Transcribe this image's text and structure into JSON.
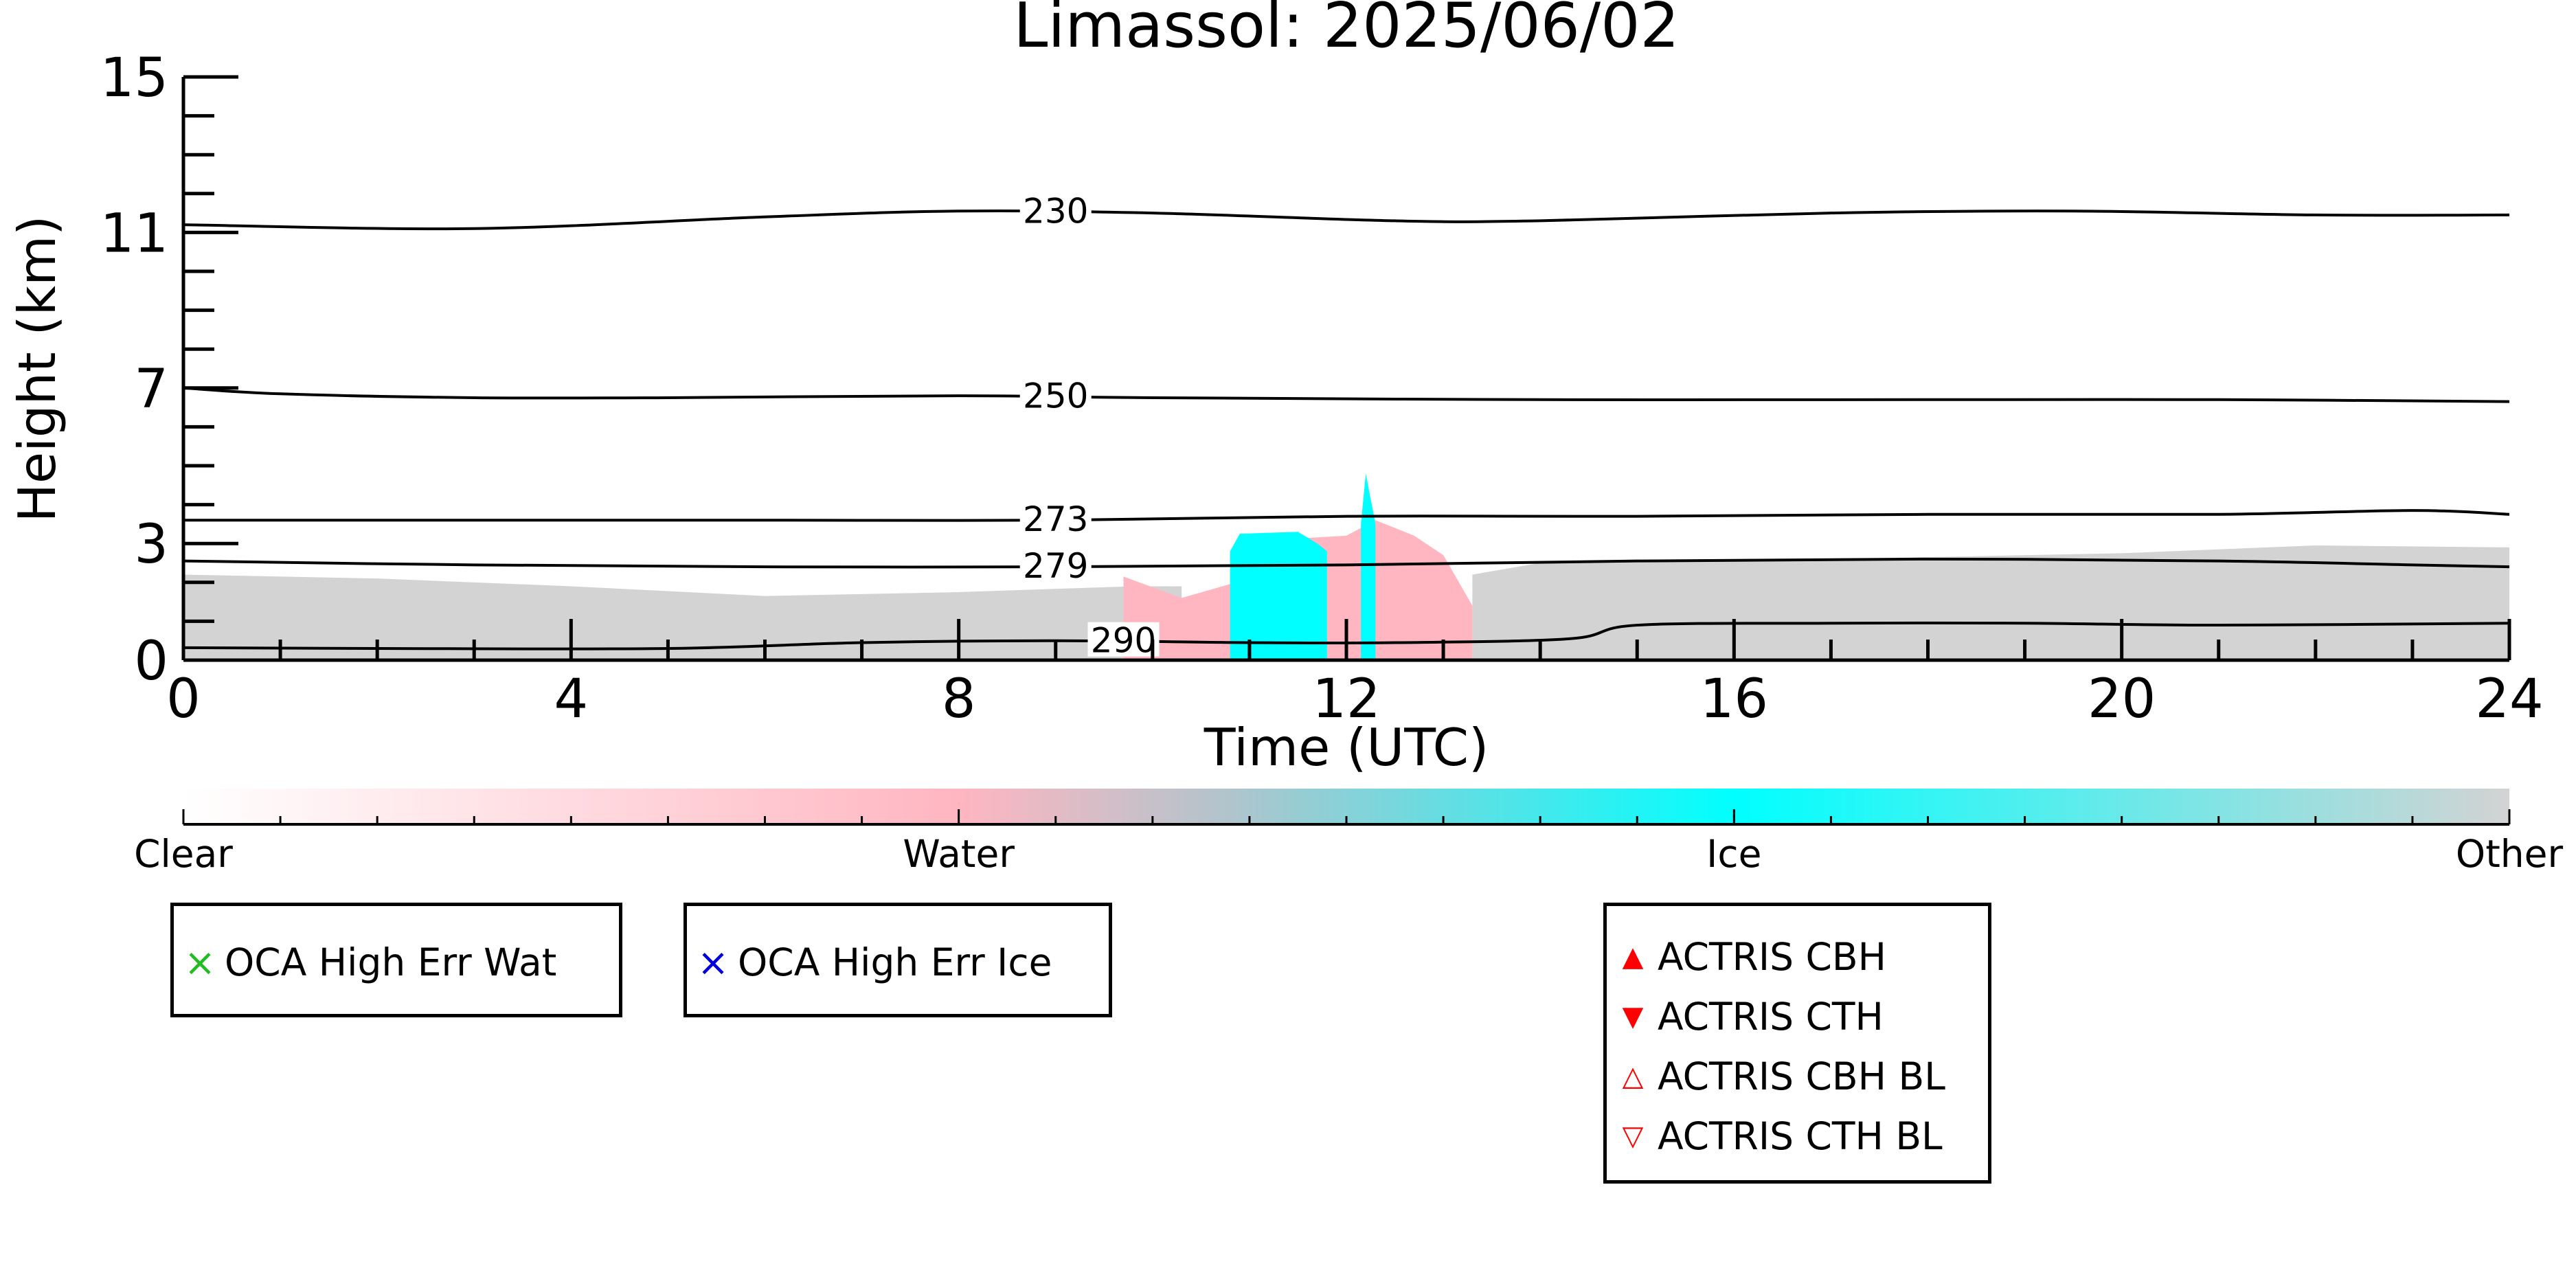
{
  "chart_data": {
    "type": "area",
    "title": "Limassol: 2025/06/02",
    "xlabel": "Time (UTC)",
    "ylabel": "Height (km)",
    "xlim": [
      0,
      24
    ],
    "ylim": [
      0,
      15
    ],
    "x_ticks": [
      0,
      4,
      8,
      12,
      16,
      20,
      24
    ],
    "y_ticks": [
      0,
      3,
      7,
      11,
      15
    ],
    "colorbar": {
      "labels": [
        "Clear",
        "Water",
        "Ice",
        "Other"
      ],
      "colors": [
        "#ffffff",
        "#ffb6c1",
        "#00ffff",
        "#d3d3d3"
      ]
    },
    "temperature_contours": [
      {
        "label": "230",
        "points": [
          [
            0,
            11.2
          ],
          [
            3,
            11.1
          ],
          [
            6,
            11.4
          ],
          [
            8,
            11.55
          ],
          [
            10,
            11.5
          ],
          [
            12.5,
            11.3
          ],
          [
            14,
            11.3
          ],
          [
            17,
            11.5
          ],
          [
            19.5,
            11.55
          ],
          [
            22,
            11.45
          ],
          [
            24,
            11.45
          ]
        ]
      },
      {
        "label": "250",
        "points": [
          [
            0,
            7.0
          ],
          [
            1,
            6.85
          ],
          [
            3,
            6.75
          ],
          [
            5,
            6.75
          ],
          [
            8,
            6.8
          ],
          [
            10,
            6.75
          ],
          [
            14,
            6.7
          ],
          [
            18,
            6.7
          ],
          [
            21,
            6.7
          ],
          [
            24,
            6.65
          ]
        ]
      },
      {
        "label": "273",
        "points": [
          [
            0,
            3.6
          ],
          [
            3,
            3.6
          ],
          [
            6,
            3.6
          ],
          [
            9,
            3.6
          ],
          [
            12,
            3.7
          ],
          [
            15,
            3.7
          ],
          [
            18,
            3.75
          ],
          [
            21,
            3.75
          ],
          [
            23,
            3.85
          ],
          [
            24,
            3.75
          ]
        ]
      },
      {
        "label": "279",
        "points": [
          [
            0,
            2.55
          ],
          [
            3,
            2.45
          ],
          [
            6,
            2.4
          ],
          [
            9,
            2.4
          ],
          [
            12,
            2.45
          ],
          [
            15,
            2.55
          ],
          [
            18,
            2.6
          ],
          [
            21,
            2.55
          ],
          [
            23,
            2.45
          ],
          [
            24,
            2.4
          ]
        ]
      },
      {
        "label": "290",
        "points": [
          [
            0,
            0.32
          ],
          [
            2,
            0.3
          ],
          [
            5,
            0.3
          ],
          [
            7,
            0.45
          ],
          [
            9,
            0.5
          ],
          [
            11,
            0.45
          ],
          [
            12.5,
            0.45
          ],
          [
            14.3,
            0.55
          ],
          [
            15,
            0.9
          ],
          [
            17,
            0.95
          ],
          [
            19,
            0.95
          ],
          [
            21,
            0.9
          ],
          [
            24,
            0.95
          ]
        ]
      }
    ],
    "cloud_regions": [
      {
        "class": "Other",
        "color": "#d3d3d3",
        "top": [
          [
            0,
            2.2
          ],
          [
            2,
            2.1
          ],
          [
            4,
            1.9
          ],
          [
            6,
            1.65
          ],
          [
            8,
            1.75
          ],
          [
            9.8,
            1.9
          ],
          [
            10.3,
            1.9
          ],
          [
            10.3,
            0
          ],
          [
            13.3,
            0
          ],
          [
            13.3,
            2.2
          ],
          [
            14,
            2.5
          ],
          [
            16,
            2.55
          ],
          [
            18,
            2.65
          ],
          [
            20,
            2.75
          ],
          [
            22,
            2.95
          ],
          [
            24,
            2.9
          ]
        ]
      },
      {
        "class": "Water",
        "color": "#ffb6c1",
        "top": [
          [
            9.7,
            2.15
          ],
          [
            10.3,
            1.6
          ],
          [
            11,
            2.1
          ],
          [
            11.3,
            3.1
          ],
          [
            12,
            3.2
          ],
          [
            12.3,
            3.6
          ],
          [
            12.7,
            3.2
          ],
          [
            13.0,
            2.7
          ],
          [
            13.3,
            1.4
          ]
        ]
      },
      {
        "class": "Ice",
        "color": "#00ffff",
        "top": [
          [
            10.8,
            2.8
          ],
          [
            10.9,
            3.25
          ],
          [
            11.5,
            3.3
          ],
          [
            11.7,
            3.0
          ],
          [
            11.8,
            2.8
          ]
        ]
      },
      {
        "class": "Ice",
        "color": "#00ffff",
        "top": [
          [
            12.15,
            3.5
          ],
          [
            12.2,
            4.8
          ],
          [
            12.3,
            3.5
          ]
        ]
      }
    ]
  },
  "legends": {
    "oca_water": {
      "label": "OCA High Err Wat",
      "marker": "×",
      "color": "#22bb22"
    },
    "oca_ice": {
      "label": "OCA High Err Ice",
      "marker": "×",
      "color": "#0000dd"
    },
    "actris": [
      {
        "label": "ACTRIS CBH",
        "marker": "▲",
        "color": "#ff0000"
      },
      {
        "label": "ACTRIS CTH",
        "marker": "▼",
        "color": "#ff0000"
      },
      {
        "label": "ACTRIS CBH BL",
        "marker": "△",
        "color": "#ff0000"
      },
      {
        "label": "ACTRIS CTH BL",
        "marker": "▽",
        "color": "#ff0000"
      }
    ]
  }
}
